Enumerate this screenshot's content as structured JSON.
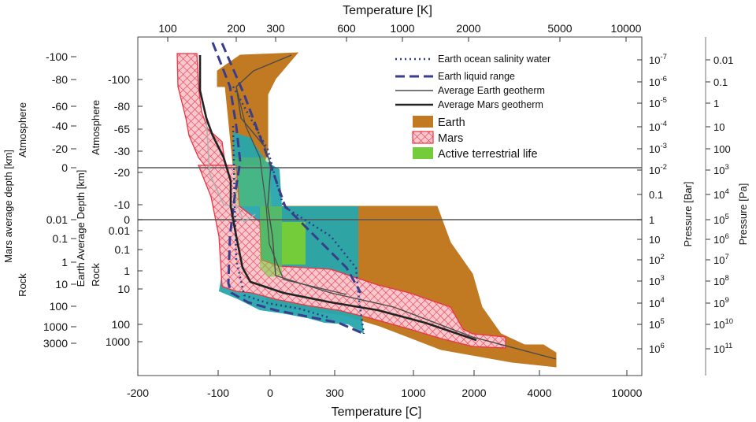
{
  "chart_data": {
    "type": "area",
    "top_axis": {
      "title": "Temperature [K]",
      "scale": "log",
      "ticks": [
        "100",
        "200",
        "300",
        "600",
        "1000",
        "2000",
        "5000",
        "10000"
      ]
    },
    "bottom_axis": {
      "title": "Temperature [C]",
      "ticks": [
        "-200",
        "-100",
        "0",
        "300",
        "1000",
        "2000",
        "4000",
        "10000"
      ]
    },
    "left_outer_axis": {
      "title": "Mars average depth [km]",
      "sub_top": "Atmosphere",
      "sub_bottom": "Rock",
      "atmosphere_ticks": [
        "-100",
        "-80",
        "-60",
        "-40",
        "-20",
        "0"
      ],
      "rock_ticks": [
        "0.01",
        "0.1",
        "1",
        "10",
        "100",
        "1000",
        "3000"
      ]
    },
    "left_inner_axis": {
      "title": "Earth Average Depth [km]",
      "sub_top": "Atmosphere",
      "sub_bottom": "Rock",
      "atmosphere_ticks": [
        "-100",
        "-80",
        "-65",
        "-30",
        "-20",
        "-10",
        "0"
      ],
      "rock_ticks": [
        "0.01",
        "0.1",
        "1",
        "10",
        "100",
        "1000"
      ]
    },
    "right_inner_axis": {
      "title": "Pressure [Bar]",
      "ticks": [
        {
          "base": "10",
          "exp": "-7"
        },
        {
          "base": "10",
          "exp": "-6"
        },
        {
          "base": "10",
          "exp": "-5"
        },
        {
          "base": "10",
          "exp": "-4"
        },
        {
          "base": "10",
          "exp": "-3"
        },
        {
          "base": "10",
          "exp": "-2"
        },
        {
          "base": "0.1",
          "exp": ""
        },
        {
          "base": "1",
          "exp": ""
        },
        {
          "base": "10",
          "exp": ""
        },
        {
          "base": "10",
          "exp": "2"
        },
        {
          "base": "10",
          "exp": "3"
        },
        {
          "base": "10",
          "exp": "4"
        },
        {
          "base": "10",
          "exp": "5"
        },
        {
          "base": "10",
          "exp": "6"
        }
      ]
    },
    "right_outer_axis": {
      "title": "Pressure [Pa]",
      "ticks": [
        {
          "base": "0.01",
          "exp": ""
        },
        {
          "base": "0.1",
          "exp": ""
        },
        {
          "base": "1",
          "exp": ""
        },
        {
          "base": "10",
          "exp": ""
        },
        {
          "base": "100",
          "exp": ""
        },
        {
          "base": "10",
          "exp": "3"
        },
        {
          "base": "10",
          "exp": "4"
        },
        {
          "base": "10",
          "exp": "5"
        },
        {
          "base": "10",
          "exp": "6"
        },
        {
          "base": "10",
          "exp": "7"
        },
        {
          "base": "10",
          "exp": "8"
        },
        {
          "base": "10",
          "exp": "9"
        },
        {
          "base": "10",
          "exp": "10"
        },
        {
          "base": "10",
          "exp": "11"
        }
      ]
    },
    "legend": [
      {
        "label": "Earth ocean salinity water",
        "style": "dotted-line",
        "color": "#2e3f86"
      },
      {
        "label": "Earth liquid range",
        "style": "dashed-line",
        "color": "#3a3c8c"
      },
      {
        "label": "Average Earth geotherm",
        "style": "thin-line",
        "color": "#4a4a4a"
      },
      {
        "label": "Average Mars geotherm",
        "style": "thick-line",
        "color": "#222222"
      },
      {
        "label": "Earth",
        "style": "fill",
        "color": "#c27a22"
      },
      {
        "label": "Mars",
        "style": "hatch",
        "color": "#ee3344"
      },
      {
        "label": "Active terrestrial life",
        "style": "fill",
        "color": "#74cc3a"
      }
    ],
    "colors": {
      "earth": "#c27a22",
      "mars_edge": "#ee3344",
      "mars_fill": "#f6c6cc",
      "life": "#74cc3a",
      "teal": "#26a6ad",
      "liquid": "#3a3c8c",
      "salinity": "#2e3f86",
      "earth_geotherm": "#4a4a4a",
      "mars_geotherm": "#222222",
      "guide": "#555555"
    }
  }
}
